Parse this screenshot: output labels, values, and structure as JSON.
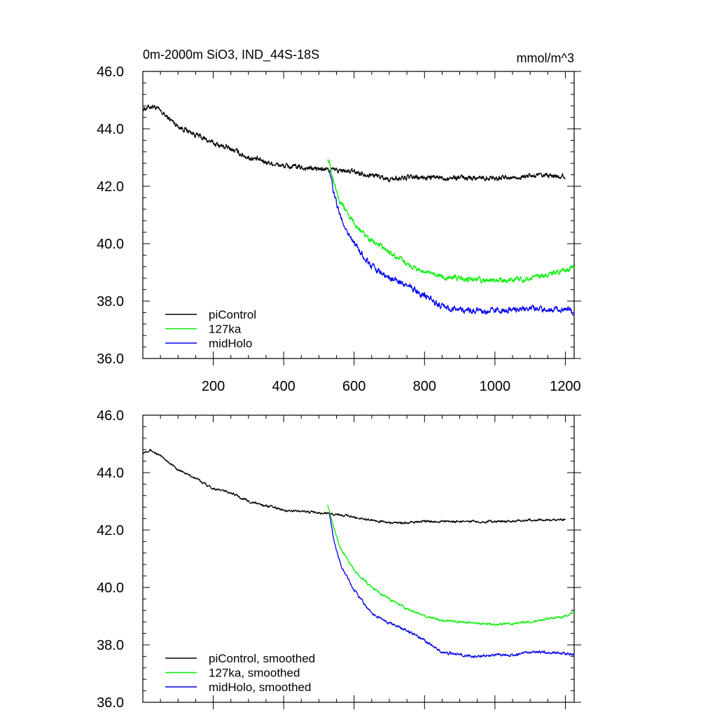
{
  "chart_data": [
    {
      "type": "line",
      "title": "0m-2000m SiO3, IND_44S-18S",
      "units": "mmol/m^3",
      "xlim": [
        0,
        1225
      ],
      "ylim": [
        36.0,
        46.0
      ],
      "xticks": [
        200,
        400,
        600,
        800,
        1000,
        1200
      ],
      "xtick_labels": [
        "200",
        "400",
        "600",
        "800",
        "1000",
        "1200"
      ],
      "yticks": [
        36,
        38,
        40,
        42,
        44,
        46
      ],
      "ytick_labels": [
        "36.0",
        "38.0",
        "40.0",
        "42.0",
        "44.0",
        "46.0"
      ],
      "show_xtick_labels": true,
      "legend_position": "bottom-left",
      "series": [
        {
          "name": "piControl",
          "color": "#000000",
          "x": [
            1,
            30,
            60,
            100,
            150,
            200,
            250,
            300,
            350,
            400,
            450,
            500,
            550,
            600,
            650,
            700,
            750,
            800,
            850,
            900,
            950,
            1000,
            1050,
            1100,
            1150,
            1200
          ],
          "y": [
            44.7,
            44.8,
            44.5,
            44.1,
            43.8,
            43.5,
            43.3,
            43.0,
            42.85,
            42.7,
            42.65,
            42.6,
            42.55,
            42.5,
            42.4,
            42.25,
            42.3,
            42.3,
            42.3,
            42.3,
            42.3,
            42.3,
            42.3,
            42.35,
            42.35,
            42.35
          ],
          "noise": 0.07
        },
        {
          "name": "127ka",
          "color": "#00ee00",
          "x": [
            525,
            540,
            560,
            600,
            650,
            700,
            750,
            800,
            850,
            900,
            950,
            1000,
            1050,
            1100,
            1150,
            1200,
            1225
          ],
          "y": [
            43.0,
            42.3,
            41.5,
            40.7,
            40.1,
            39.7,
            39.3,
            39.0,
            38.85,
            38.8,
            38.75,
            38.7,
            38.75,
            38.8,
            38.9,
            39.05,
            39.2
          ],
          "noise": 0.07
        },
        {
          "name": "midHolo",
          "color": "#0000ee",
          "x": [
            530,
            545,
            565,
            600,
            650,
            700,
            750,
            800,
            850,
            900,
            950,
            1000,
            1050,
            1100,
            1150,
            1200,
            1225
          ],
          "y": [
            42.6,
            41.6,
            40.8,
            40.0,
            39.2,
            38.8,
            38.55,
            38.2,
            37.8,
            37.7,
            37.65,
            37.65,
            37.7,
            37.75,
            37.75,
            37.7,
            37.65
          ],
          "noise": 0.08
        }
      ]
    },
    {
      "type": "line",
      "xlim": [
        0,
        1225
      ],
      "ylim": [
        36.0,
        46.0
      ],
      "xticks": [
        200,
        400,
        600,
        800,
        1000,
        1200
      ],
      "yticks": [
        36,
        38,
        40,
        42,
        44,
        46
      ],
      "ytick_labels": [
        "36.0",
        "38.0",
        "40.0",
        "42.0",
        "44.0",
        "46.0"
      ],
      "show_xtick_labels": false,
      "legend_position": "bottom-left",
      "series": [
        {
          "name": "piControl, smoothed",
          "color": "#000000",
          "x": [
            1,
            20,
            60,
            100,
            150,
            200,
            250,
            300,
            350,
            400,
            450,
            500,
            550,
            600,
            650,
            700,
            750,
            800,
            850,
            900,
            950,
            1000,
            1050,
            1100,
            1150,
            1200
          ],
          "y": [
            44.7,
            44.8,
            44.5,
            44.1,
            43.8,
            43.45,
            43.3,
            43.0,
            42.85,
            42.7,
            42.65,
            42.6,
            42.55,
            42.45,
            42.35,
            42.25,
            42.25,
            42.3,
            42.3,
            42.3,
            42.3,
            42.3,
            42.3,
            42.35,
            42.35,
            42.35
          ],
          "noise": 0.03
        },
        {
          "name": "127ka, smoothed",
          "color": "#00ee00",
          "x": [
            525,
            540,
            560,
            600,
            650,
            700,
            750,
            800,
            850,
            900,
            950,
            1000,
            1050,
            1100,
            1150,
            1200,
            1225
          ],
          "y": [
            42.9,
            42.2,
            41.4,
            40.6,
            40.0,
            39.6,
            39.25,
            39.0,
            38.85,
            38.8,
            38.75,
            38.7,
            38.75,
            38.8,
            38.9,
            39.0,
            39.15
          ],
          "noise": 0.03
        },
        {
          "name": "midHolo, smoothed",
          "color": "#0000ee",
          "x": [
            530,
            545,
            565,
            600,
            650,
            700,
            750,
            800,
            850,
            900,
            950,
            1000,
            1050,
            1100,
            1150,
            1200,
            1225
          ],
          "y": [
            42.6,
            41.5,
            40.7,
            39.9,
            39.1,
            38.75,
            38.5,
            38.15,
            37.75,
            37.65,
            37.6,
            37.65,
            37.65,
            37.75,
            37.75,
            37.7,
            37.65
          ],
          "noise": 0.035
        }
      ]
    }
  ]
}
